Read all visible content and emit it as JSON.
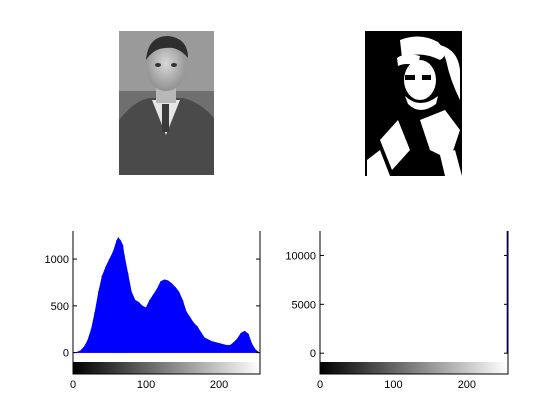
{
  "figure": {
    "images": [
      {
        "name": "original-photo",
        "kind": "grayscale portrait"
      },
      {
        "name": "binary-photo",
        "kind": "black and white portrait"
      }
    ]
  },
  "chart_data": [
    {
      "type": "bar",
      "title": "",
      "xlabel": "",
      "ylabel": "",
      "xlim": [
        0,
        256
      ],
      "ylim": [
        -100,
        1300
      ],
      "xticks": [
        0,
        100,
        200
      ],
      "yticks": [
        0,
        500,
        1000
      ],
      "colorbar": "gray",
      "series": [
        {
          "color": "#0000ff",
          "x": [
            0,
            5,
            10,
            15,
            20,
            25,
            30,
            35,
            40,
            45,
            50,
            55,
            60,
            62,
            65,
            68,
            70,
            75,
            80,
            85,
            90,
            95,
            100,
            105,
            110,
            115,
            120,
            125,
            130,
            135,
            140,
            145,
            150,
            155,
            160,
            165,
            170,
            175,
            180,
            190,
            200,
            210,
            215,
            220,
            225,
            230,
            235,
            240,
            245,
            250,
            255
          ],
          "values": [
            0,
            5,
            20,
            60,
            130,
            250,
            430,
            650,
            820,
            920,
            1000,
            1080,
            1200,
            1230,
            1200,
            1150,
            1050,
            850,
            650,
            560,
            540,
            500,
            480,
            560,
            620,
            680,
            760,
            780,
            770,
            740,
            700,
            650,
            560,
            440,
            380,
            320,
            280,
            220,
            160,
            120,
            100,
            80,
            80,
            110,
            150,
            210,
            230,
            200,
            90,
            30,
            0
          ]
        }
      ]
    },
    {
      "type": "bar",
      "title": "",
      "xlabel": "",
      "ylabel": "",
      "xlim": [
        0,
        256
      ],
      "ylim": [
        -900,
        12500
      ],
      "xticks": [
        0,
        100,
        200
      ],
      "yticks": [
        0,
        5000,
        10000
      ],
      "colorbar": "gray",
      "series": [
        {
          "color": "#0000a0",
          "x": [
            0,
            255
          ],
          "values": [
            0,
            12500
          ]
        }
      ]
    }
  ]
}
